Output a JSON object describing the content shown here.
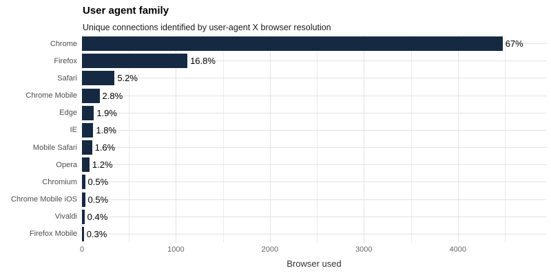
{
  "header": {
    "title": "User agent family",
    "subtitle": "Unique connections identified by user-agent X browser resolution"
  },
  "chart_data": {
    "type": "bar",
    "orientation": "horizontal",
    "title": "User agent family",
    "subtitle": "Unique connections identified by user-agent X browser resolution",
    "xlabel": "Browser used",
    "ylabel": "",
    "categories": [
      "Chrome",
      "Firefox",
      "Safari",
      "Chrome Mobile",
      "Edge",
      "IE",
      "Mobile Safari",
      "Opera",
      "Chromium",
      "Chrome Mobile iOS",
      "Vivaldi",
      "Firefox Mobile"
    ],
    "values": [
      4476,
      1122,
      347,
      187,
      127,
      120,
      107,
      80,
      33,
      33,
      27,
      20
    ],
    "bar_labels": [
      "67%",
      "16.8%",
      "5.2%",
      "2.8%",
      "1.9%",
      "1.8%",
      "1.6%",
      "1.2%",
      "0.5%",
      "0.5%",
      "0.4%",
      "0.3%"
    ],
    "xlim": [
      0,
      4940
    ],
    "xticks": [
      0,
      1000,
      2000,
      3000,
      4000
    ],
    "minor_xticks": [
      500,
      1500,
      2500,
      3500,
      4500
    ],
    "grid": true,
    "legend": false
  },
  "colors": {
    "bar": "#152942",
    "grid_major": "#e2e2e2",
    "grid_minor": "#ececec",
    "value_label": "#000000",
    "y_label_text": "#4d4d4d",
    "x_tick_text": "#666666",
    "axis_title_text": "#333333",
    "background": "#ffffff"
  }
}
